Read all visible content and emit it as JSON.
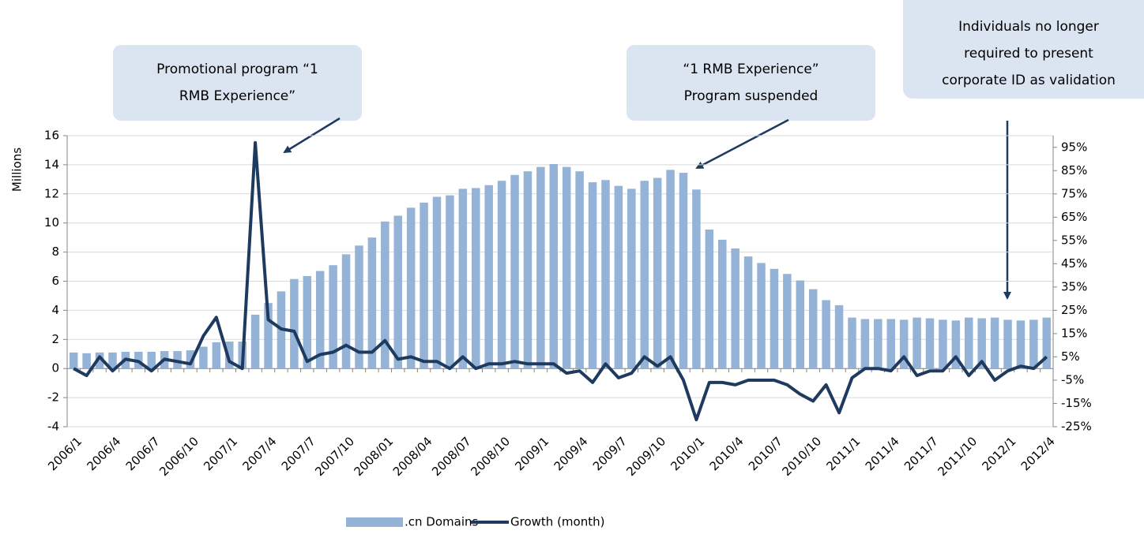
{
  "chart_data": {
    "type": "bar_line",
    "y_axis_label": "Millions",
    "categories": [
      "2006/1",
      null,
      null,
      "2006/4",
      null,
      null,
      "2006/7",
      null,
      null,
      "2006/10",
      null,
      null,
      "2007/1",
      null,
      null,
      "2007/4",
      null,
      null,
      "2007/7",
      null,
      null,
      "2007/10",
      null,
      null,
      "2008/01",
      null,
      null,
      "2008/04",
      null,
      null,
      "2008/07",
      null,
      null,
      "2008/10",
      null,
      null,
      "2009/1",
      null,
      null,
      "2009/4",
      null,
      null,
      "2009/7",
      null,
      null,
      "2009/10",
      null,
      null,
      "2010/1",
      null,
      null,
      "2010/4",
      null,
      null,
      "2010/7",
      null,
      null,
      "2010/10",
      null,
      null,
      "2011/1",
      null,
      null,
      "2011/4",
      null,
      null,
      "2011/7",
      null,
      null,
      "2011/10",
      null,
      null,
      "2012/1",
      null,
      null,
      "2012/4"
    ],
    "series": [
      {
        "name": ".cn Domains",
        "type": "bar",
        "color": "#95b3d7",
        "values": [
          1.1,
          1.05,
          1.1,
          1.1,
          1.15,
          1.15,
          1.15,
          1.2,
          1.2,
          1.25,
          1.5,
          1.8,
          1.85,
          1.85,
          3.7,
          4.5,
          5.3,
          6.15,
          6.35,
          6.7,
          7.1,
          7.85,
          8.45,
          9.0,
          10.1,
          10.5,
          11.05,
          11.4,
          11.8,
          11.9,
          12.35,
          12.4,
          12.6,
          12.9,
          13.3,
          13.55,
          13.85,
          14.05,
          13.85,
          13.55,
          12.8,
          12.95,
          12.55,
          12.35,
          12.9,
          13.1,
          13.65,
          13.45,
          12.3,
          9.55,
          8.85,
          8.25,
          7.7,
          7.25,
          6.85,
          6.5,
          6.05,
          5.45,
          4.7,
          4.35,
          3.5,
          3.4,
          3.4,
          3.4,
          3.35,
          3.5,
          3.45,
          3.35,
          3.3,
          3.5,
          3.45,
          3.5,
          3.35,
          3.3,
          3.35,
          3.5
        ]
      },
      {
        "name": "Growth (month)",
        "type": "line",
        "axis": "y2",
        "color": "#1f3a5f",
        "values": [
          0,
          -3,
          5,
          -1,
          4,
          3,
          -1,
          4,
          3,
          2,
          14,
          22,
          3,
          0,
          97,
          21,
          17,
          16,
          3,
          6,
          7,
          10,
          7,
          7,
          12,
          4,
          5,
          3,
          3,
          0,
          5,
          0,
          2,
          2,
          3,
          2,
          2,
          2,
          -2,
          -1,
          -6,
          2,
          -4,
          -2,
          5,
          1,
          5,
          -5,
          -22,
          -6,
          -6,
          -7,
          -5,
          -5,
          -5,
          -7,
          -11,
          -14,
          -7,
          -19,
          -4,
          0,
          0,
          -1,
          5,
          -3,
          -1,
          -1,
          5,
          -3,
          3,
          -5,
          -1,
          1,
          0,
          5
        ]
      }
    ],
    "ylim": [
      -4,
      16
    ],
    "yticks": [
      -4,
      -2,
      0,
      2,
      4,
      6,
      8,
      10,
      12,
      14,
      16
    ],
    "y2lim": [
      -25,
      100
    ],
    "y2ticks": [
      {
        "value": -25,
        "label": "-25%"
      },
      {
        "value": -15,
        "label": "-15%"
      },
      {
        "value": -5,
        "label": "-5%"
      },
      {
        "value": 5,
        "label": "5%"
      },
      {
        "value": 15,
        "label": "15%"
      },
      {
        "value": 25,
        "label": "25%"
      },
      {
        "value": 35,
        "label": "35%"
      },
      {
        "value": 45,
        "label": "45%"
      },
      {
        "value": 55,
        "label": "55%"
      },
      {
        "value": 65,
        "label": "65%"
      },
      {
        "value": 75,
        "label": "75%"
      },
      {
        "value": 85,
        "label": "85%"
      },
      {
        "value": 95,
        "label": "95%"
      }
    ],
    "grid": true,
    "legend": "bottom",
    "annotations": [
      {
        "lines": [
          "Promotional program “1",
          "RMB Experience”"
        ]
      },
      {
        "lines": [
          "“1 RMB Experience”",
          "Program suspended"
        ]
      },
      {
        "lines": [
          "Individuals no longer",
          "required to present",
          "corporate ID as validation"
        ]
      }
    ]
  }
}
